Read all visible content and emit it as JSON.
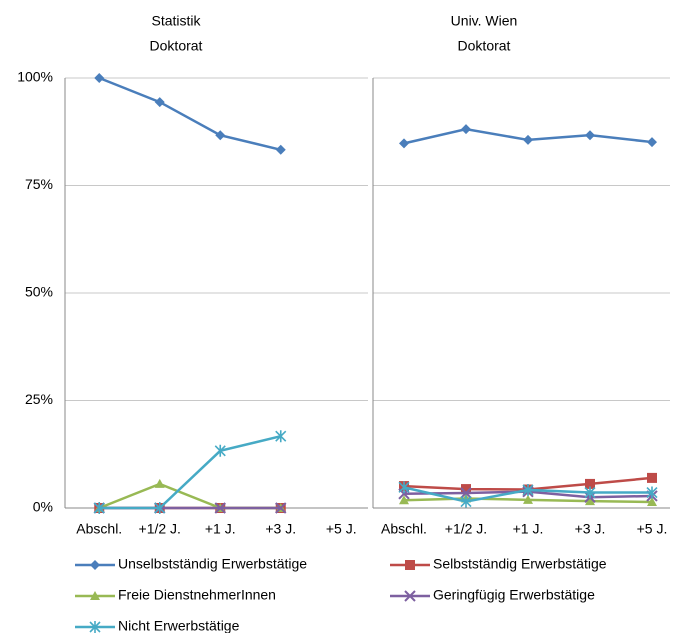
{
  "chart_data": [
    {
      "type": "line",
      "title": [
        "Statistik",
        "Doktorat"
      ],
      "categories": [
        "Abschl.",
        "+1/2 J.",
        "+1 J.",
        "+3 J.",
        "+5 J."
      ],
      "ylim": [
        0,
        100
      ],
      "yticks": [
        {
          "value": 0,
          "label": "0%"
        },
        {
          "value": 25,
          "label": "25%"
        },
        {
          "value": 50,
          "label": "50%"
        },
        {
          "value": 75,
          "label": "75%"
        },
        {
          "value": 100,
          "label": "100%"
        }
      ],
      "grid": true,
      "legend": "bottom",
      "series": [
        {
          "name": "Unselbstständig Erwerbstätige",
          "color": "#4a7ebb",
          "marker": "diamond",
          "values": [
            100,
            94.4,
            86.7,
            83.3,
            null
          ]
        },
        {
          "name": "Selbstständig Erwerbstätige",
          "color": "#be4b48",
          "marker": "square",
          "values": [
            0,
            0,
            0,
            0,
            null
          ]
        },
        {
          "name": "Freie DienstnehmerInnen",
          "color": "#98b954",
          "marker": "triangle",
          "values": [
            0,
            5.6,
            0,
            0,
            null
          ]
        },
        {
          "name": "Geringfügig Erwerbstätige",
          "color": "#7d60a0",
          "marker": "x",
          "values": [
            0,
            0,
            0,
            0,
            null
          ]
        },
        {
          "name": "Nicht Erwerbstätige",
          "color": "#46aac5",
          "marker": "star",
          "values": [
            0,
            0,
            13.3,
            16.7,
            null
          ]
        }
      ]
    },
    {
      "type": "line",
      "title": [
        "Univ. Wien",
        "Doktorat"
      ],
      "categories": [
        "Abschl.",
        "+1/2 J.",
        "+1 J.",
        "+3 J.",
        "+5 J."
      ],
      "ylim": [
        0,
        100
      ],
      "yticks": [
        0,
        25,
        50,
        75,
        100
      ],
      "grid": true,
      "series": [
        {
          "color": "#4a7ebb",
          "marker": "diamond",
          "values": [
            84.8,
            88.1,
            85.6,
            86.7,
            85.1
          ]
        },
        {
          "color": "#be4b48",
          "marker": "square",
          "values": [
            5.1,
            4.4,
            4.3,
            5.6,
            7.0
          ]
        },
        {
          "color": "#98b954",
          "marker": "triangle",
          "values": [
            1.8,
            2.2,
            1.9,
            1.6,
            1.4
          ]
        },
        {
          "color": "#7d60a0",
          "marker": "x",
          "values": [
            3.3,
            3.5,
            3.8,
            2.5,
            2.8
          ]
        },
        {
          "color": "#46aac5",
          "marker": "star",
          "values": [
            4.8,
            1.5,
            4.2,
            3.6,
            3.6
          ]
        }
      ]
    }
  ]
}
